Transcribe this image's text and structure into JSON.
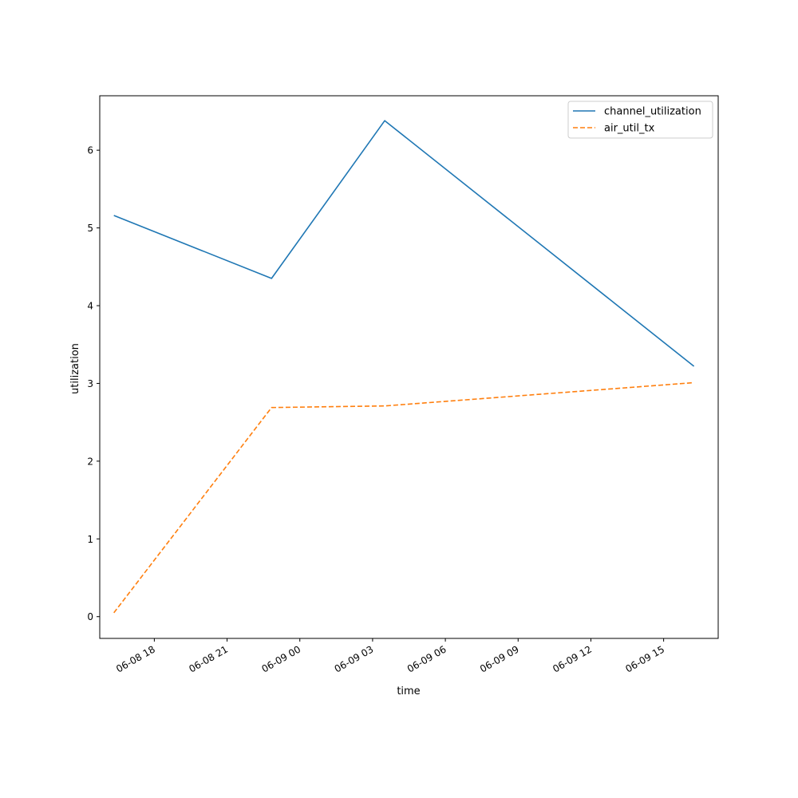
{
  "chart_data": {
    "type": "line",
    "title": "",
    "xlabel": "time",
    "ylabel": "utilization",
    "xlim": [
      "2024-06-08 15:45",
      "2024-06-09 17:15"
    ],
    "ylim": [
      -0.28,
      6.7
    ],
    "x_ticks": [
      {
        "value": "2024-06-08 18:00",
        "label": "06-08 18"
      },
      {
        "value": "2024-06-08 21:00",
        "label": "06-08 21"
      },
      {
        "value": "2024-06-09 00:00",
        "label": "06-09 00"
      },
      {
        "value": "2024-06-09 03:00",
        "label": "06-09 03"
      },
      {
        "value": "2024-06-09 06:00",
        "label": "06-09 06"
      },
      {
        "value": "2024-06-09 09:00",
        "label": "06-09 09"
      },
      {
        "value": "2024-06-09 12:00",
        "label": "06-09 12"
      },
      {
        "value": "2024-06-09 15:00",
        "label": "06-09 15"
      }
    ],
    "y_ticks": [
      0,
      1,
      2,
      3,
      4,
      5,
      6
    ],
    "grid": false,
    "legend_position": "top-right",
    "series": [
      {
        "name": "channel_utilization",
        "color": "#1f77b4",
        "line_style": "solid",
        "points": [
          {
            "x": "2024-06-08 16:20",
            "y": 5.16
          },
          {
            "x": "2024-06-08 22:50",
            "y": 4.35
          },
          {
            "x": "2024-06-09 03:30",
            "y": 6.38
          },
          {
            "x": "2024-06-09 16:15",
            "y": 3.22
          }
        ]
      },
      {
        "name": "air_util_tx",
        "color": "#ff7f0e",
        "line_style": "dashed",
        "points": [
          {
            "x": "2024-06-08 16:20",
            "y": 0.05
          },
          {
            "x": "2024-06-08 22:50",
            "y": 2.69
          },
          {
            "x": "2024-06-09 03:30",
            "y": 2.71
          },
          {
            "x": "2024-06-09 16:15",
            "y": 3.01
          }
        ]
      }
    ]
  }
}
